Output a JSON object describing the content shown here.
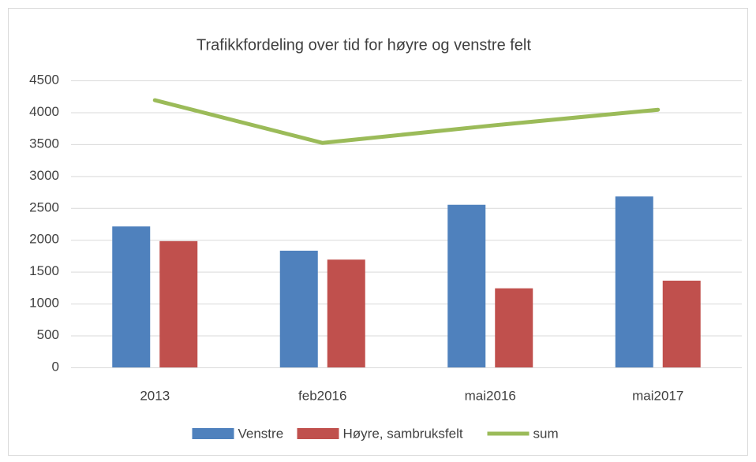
{
  "chart_data": {
    "type": "bar",
    "title": "Trafikkfordeling over tid for høyre og venstre felt",
    "categories": [
      "2013",
      "feb2016",
      "mai2016",
      "mai2017"
    ],
    "series": [
      {
        "name": "Venstre",
        "color": "#4f81bd",
        "values": [
          2210,
          1830,
          2550,
          2680
        ]
      },
      {
        "name": "Høyre, sambruksfelt",
        "color": "#c0504d",
        "values": [
          1980,
          1690,
          1240,
          1360
        ]
      },
      {
        "name": "sum",
        "color": "#9bbb59",
        "type": "line",
        "values": [
          4190,
          3520,
          3790,
          4040
        ]
      }
    ],
    "ylim": [
      0,
      4500
    ],
    "yticks": [
      0,
      500,
      1000,
      1500,
      2000,
      2500,
      3000,
      3500,
      4000,
      4500
    ],
    "grid": true,
    "legend": "bottom"
  }
}
